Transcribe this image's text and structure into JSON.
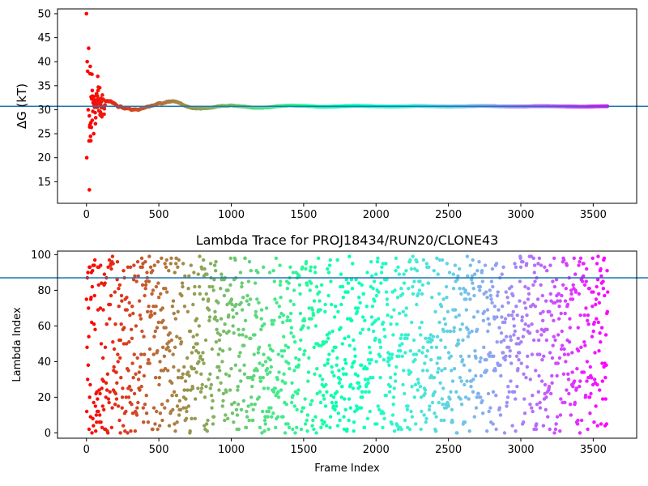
{
  "chart_data": [
    {
      "type": "scatter",
      "title": "",
      "xlabel": "",
      "ylabel": "ΔG (kT)",
      "xlim": [
        -200,
        3800
      ],
      "ylim": [
        10.5,
        51
      ],
      "xticks": [
        0,
        500,
        1000,
        1500,
        2000,
        2500,
        3000,
        3500
      ],
      "yticks": [
        15,
        20,
        25,
        30,
        35,
        40,
        45,
        50
      ],
      "xtick_labels": [
        "0",
        "500",
        "1000",
        "1500",
        "2000",
        "2500",
        "3000",
        "3500"
      ],
      "ytick_labels": [
        "15",
        "20",
        "25",
        "30",
        "35",
        "40",
        "45",
        "50"
      ],
      "reference_line": {
        "y": 30.7,
        "color": "#1f77b4"
      },
      "colormap": "rainbow (reversed: red at frame 0, purple at frame 3600)",
      "grid": false,
      "n_frames": 3600,
      "converged_value": 30.7,
      "sample_points": [
        {
          "x": 0,
          "y": 50.0
        },
        {
          "x": 2,
          "y": 20.0
        },
        {
          "x": 5,
          "y": 40.0
        },
        {
          "x": 8,
          "y": 38.0
        },
        {
          "x": 12,
          "y": 30.0
        },
        {
          "x": 15,
          "y": 42.8
        },
        {
          "x": 18,
          "y": 23.5
        },
        {
          "x": 20,
          "y": 13.3
        },
        {
          "x": 25,
          "y": 37.5
        },
        {
          "x": 30,
          "y": 27.3
        },
        {
          "x": 40,
          "y": 34.0
        },
        {
          "x": 50,
          "y": 25.0
        },
        {
          "x": 60,
          "y": 32.0
        },
        {
          "x": 80,
          "y": 34.0
        },
        {
          "x": 100,
          "y": 29.0
        },
        {
          "x": 200,
          "y": 31.0
        },
        {
          "x": 300,
          "y": 29.8
        },
        {
          "x": 450,
          "y": 29.8
        },
        {
          "x": 600,
          "y": 31.4
        },
        {
          "x": 1000,
          "y": 31.1
        },
        {
          "x": 1500,
          "y": 30.8
        },
        {
          "x": 2000,
          "y": 30.7
        },
        {
          "x": 3000,
          "y": 30.7
        },
        {
          "x": 3600,
          "y": 30.7
        }
      ]
    },
    {
      "type": "scatter",
      "title": "Lambda Trace for PROJ18434/RUN20/CLONE43",
      "xlabel": "Frame Index",
      "ylabel": "Lambda Index",
      "xlim": [
        -200,
        3800
      ],
      "ylim": [
        -3,
        102
      ],
      "xticks": [
        0,
        500,
        1000,
        1500,
        2000,
        2500,
        3000,
        3500
      ],
      "yticks": [
        0,
        20,
        40,
        60,
        80,
        100
      ],
      "xtick_labels": [
        "0",
        "500",
        "1000",
        "1500",
        "2000",
        "2500",
        "3000",
        "3500"
      ],
      "ytick_labels": [
        "0",
        "20",
        "40",
        "60",
        "80",
        "100"
      ],
      "reference_line": {
        "y": 87,
        "color": "#1f77b4"
      },
      "colormap": "rainbow (reversed: red at frame 0, purple at frame 3600)",
      "grid": false,
      "n_frames": 3600,
      "lambda_range": [
        0,
        99
      ],
      "sampling_interval_frames": 2
    }
  ]
}
